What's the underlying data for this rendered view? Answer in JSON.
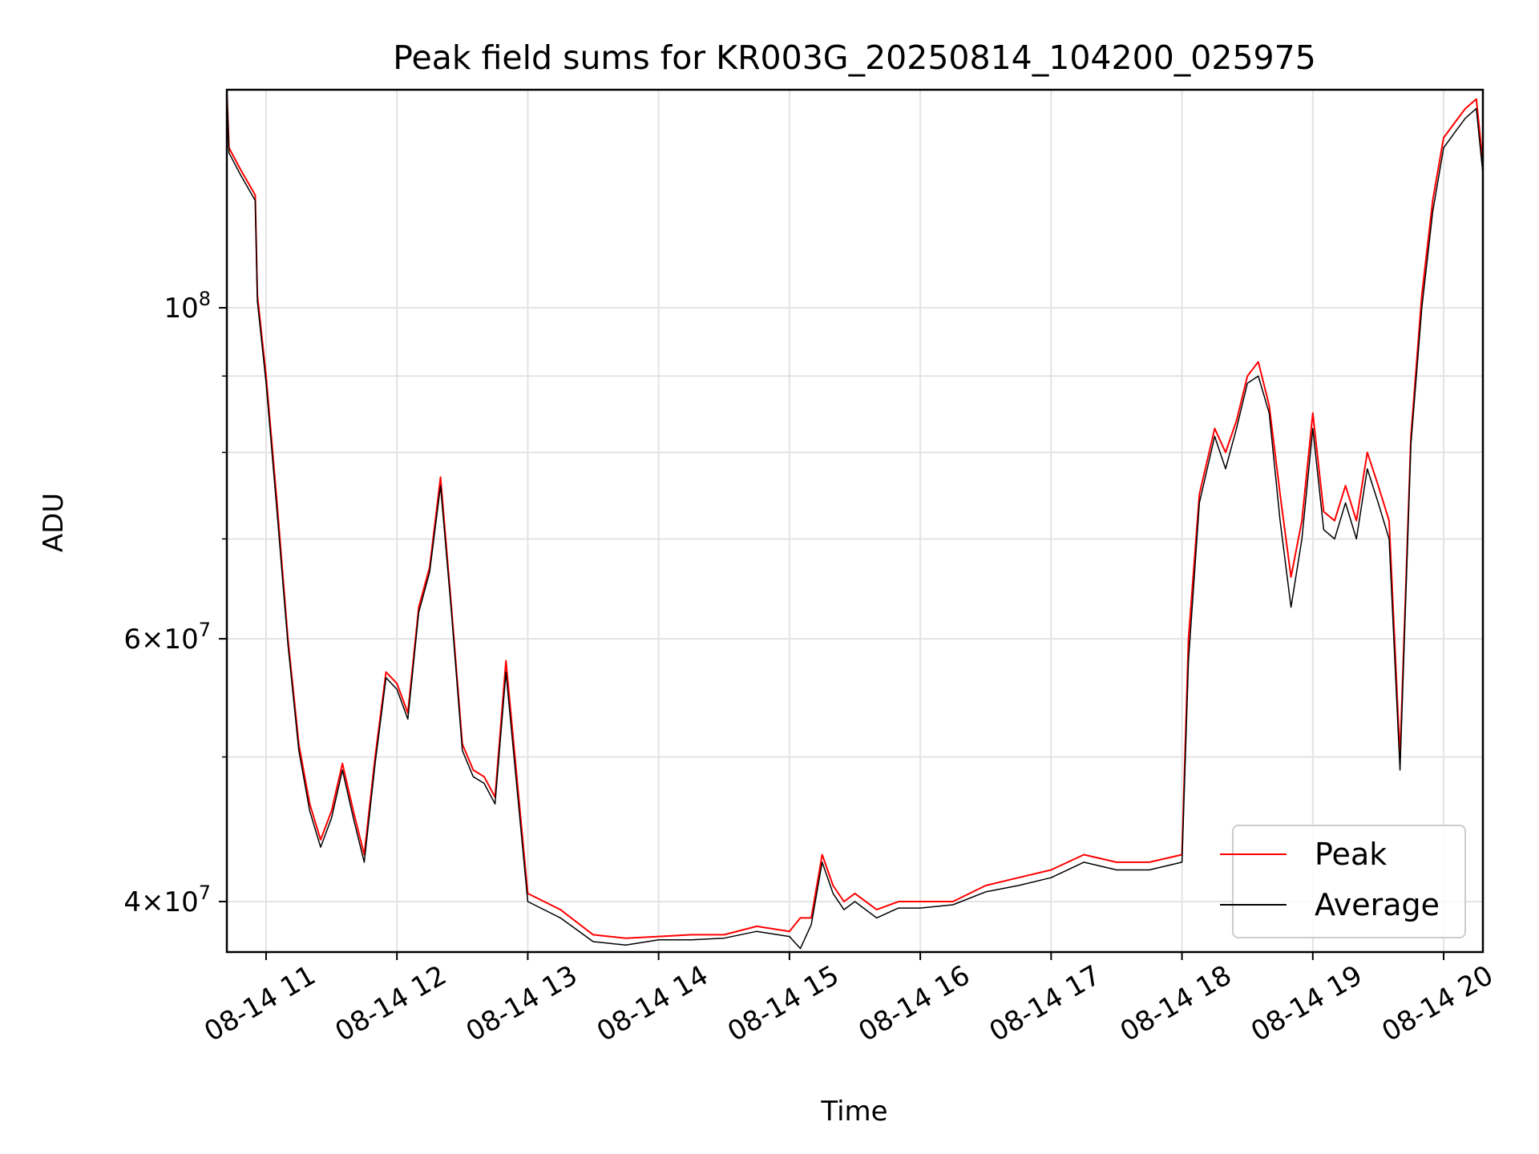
{
  "chart_data": {
    "type": "line",
    "title": "Peak field sums for KR003G_20250814_104200_025975",
    "xlabel": "Time",
    "ylabel": "ADU",
    "yscale": "log",
    "xlim": [
      "2025-08-14T10:42",
      "2025-08-14T20:18"
    ],
    "ylim": [
      37000000,
      140000000
    ],
    "x_ticks": [
      "08-14 11",
      "08-14 12",
      "08-14 13",
      "08-14 14",
      "08-14 15",
      "08-14 16",
      "08-14 17",
      "08-14 18",
      "08-14 19",
      "08-14 20"
    ],
    "y_ticks": [
      {
        "value": 40000000,
        "base": "4",
        "sup": "7"
      },
      {
        "value": 60000000,
        "base": "6",
        "sup": "7"
      },
      {
        "value": 100000000,
        "base": "10",
        "sup": "8"
      }
    ],
    "y_minor_ticks": [
      50000000,
      70000000,
      80000000,
      90000000
    ],
    "grid": true,
    "legend_position": "lower-right",
    "series": [
      {
        "name": "Peak",
        "color": "#ff0000",
        "x": [
          "2025-08-14T10:42",
          "2025-08-14T10:43",
          "2025-08-14T10:48",
          "2025-08-14T10:55",
          "2025-08-14T10:56",
          "2025-08-14T11:00",
          "2025-08-14T11:05",
          "2025-08-14T11:10",
          "2025-08-14T11:15",
          "2025-08-14T11:20",
          "2025-08-14T11:25",
          "2025-08-14T11:30",
          "2025-08-14T11:35",
          "2025-08-14T11:40",
          "2025-08-14T11:45",
          "2025-08-14T11:50",
          "2025-08-14T11:55",
          "2025-08-14T12:00",
          "2025-08-14T12:05",
          "2025-08-14T12:10",
          "2025-08-14T12:15",
          "2025-08-14T12:20",
          "2025-08-14T12:25",
          "2025-08-14T12:30",
          "2025-08-14T12:35",
          "2025-08-14T12:40",
          "2025-08-14T12:45",
          "2025-08-14T12:50",
          "2025-08-14T13:00",
          "2025-08-14T13:15",
          "2025-08-14T13:30",
          "2025-08-14T13:45",
          "2025-08-14T14:00",
          "2025-08-14T14:15",
          "2025-08-14T14:30",
          "2025-08-14T14:45",
          "2025-08-14T15:00",
          "2025-08-14T15:05",
          "2025-08-14T15:10",
          "2025-08-14T15:15",
          "2025-08-14T15:20",
          "2025-08-14T15:25",
          "2025-08-14T15:30",
          "2025-08-14T15:40",
          "2025-08-14T15:50",
          "2025-08-14T16:00",
          "2025-08-14T16:15",
          "2025-08-14T16:30",
          "2025-08-14T16:45",
          "2025-08-14T17:00",
          "2025-08-14T17:15",
          "2025-08-14T17:30",
          "2025-08-14T17:45",
          "2025-08-14T18:00",
          "2025-08-14T18:03",
          "2025-08-14T18:08",
          "2025-08-14T18:15",
          "2025-08-14T18:20",
          "2025-08-14T18:25",
          "2025-08-14T18:30",
          "2025-08-14T18:35",
          "2025-08-14T18:40",
          "2025-08-14T18:45",
          "2025-08-14T18:50",
          "2025-08-14T18:55",
          "2025-08-14T19:00",
          "2025-08-14T19:05",
          "2025-08-14T19:10",
          "2025-08-14T19:15",
          "2025-08-14T19:20",
          "2025-08-14T19:25",
          "2025-08-14T19:30",
          "2025-08-14T19:35",
          "2025-08-14T19:40",
          "2025-08-14T19:45",
          "2025-08-14T19:50",
          "2025-08-14T19:55",
          "2025-08-14T20:00",
          "2025-08-14T20:05",
          "2025-08-14T20:10",
          "2025-08-14T20:15",
          "2025-08-14T20:18"
        ],
        "values": [
          140000000,
          128000000,
          124000000,
          119000000,
          102000000,
          90000000,
          74000000,
          60000000,
          51000000,
          46500000,
          44000000,
          46000000,
          49500000,
          46000000,
          43000000,
          50000000,
          57000000,
          56000000,
          53500000,
          63000000,
          67000000,
          77000000,
          63000000,
          51000000,
          49000000,
          48500000,
          47000000,
          58000000,
          40500000,
          39500000,
          38000000,
          37800000,
          37900000,
          38000000,
          38000000,
          38500000,
          38200000,
          39000000,
          39000000,
          43000000,
          41000000,
          40000000,
          40500000,
          39500000,
          40000000,
          40000000,
          40000000,
          41000000,
          41500000,
          42000000,
          43000000,
          42500000,
          42500000,
          43000000,
          60000000,
          75000000,
          83000000,
          80000000,
          84000000,
          90000000,
          92000000,
          86000000,
          75000000,
          66000000,
          72000000,
          85000000,
          73000000,
          72000000,
          76000000,
          72000000,
          80000000,
          76000000,
          72000000,
          50000000,
          82000000,
          102000000,
          118000000,
          130000000,
          133000000,
          136000000,
          138000000,
          125000000
        ]
      },
      {
        "name": "Average",
        "color": "#000000",
        "x": [
          "2025-08-14T10:42",
          "2025-08-14T10:43",
          "2025-08-14T10:48",
          "2025-08-14T10:55",
          "2025-08-14T10:56",
          "2025-08-14T11:00",
          "2025-08-14T11:05",
          "2025-08-14T11:10",
          "2025-08-14T11:15",
          "2025-08-14T11:20",
          "2025-08-14T11:25",
          "2025-08-14T11:30",
          "2025-08-14T11:35",
          "2025-08-14T11:40",
          "2025-08-14T11:45",
          "2025-08-14T11:50",
          "2025-08-14T11:55",
          "2025-08-14T12:00",
          "2025-08-14T12:05",
          "2025-08-14T12:10",
          "2025-08-14T12:15",
          "2025-08-14T12:20",
          "2025-08-14T12:25",
          "2025-08-14T12:30",
          "2025-08-14T12:35",
          "2025-08-14T12:40",
          "2025-08-14T12:45",
          "2025-08-14T12:50",
          "2025-08-14T13:00",
          "2025-08-14T13:15",
          "2025-08-14T13:30",
          "2025-08-14T13:45",
          "2025-08-14T14:00",
          "2025-08-14T14:15",
          "2025-08-14T14:30",
          "2025-08-14T14:45",
          "2025-08-14T15:00",
          "2025-08-14T15:05",
          "2025-08-14T15:10",
          "2025-08-14T15:15",
          "2025-08-14T15:20",
          "2025-08-14T15:25",
          "2025-08-14T15:30",
          "2025-08-14T15:40",
          "2025-08-14T15:50",
          "2025-08-14T16:00",
          "2025-08-14T16:15",
          "2025-08-14T16:30",
          "2025-08-14T16:45",
          "2025-08-14T17:00",
          "2025-08-14T17:15",
          "2025-08-14T17:30",
          "2025-08-14T17:45",
          "2025-08-14T18:00",
          "2025-08-14T18:03",
          "2025-08-14T18:08",
          "2025-08-14T18:15",
          "2025-08-14T18:20",
          "2025-08-14T18:25",
          "2025-08-14T18:30",
          "2025-08-14T18:35",
          "2025-08-14T18:40",
          "2025-08-14T18:45",
          "2025-08-14T18:50",
          "2025-08-14T18:55",
          "2025-08-14T19:00",
          "2025-08-14T19:05",
          "2025-08-14T19:10",
          "2025-08-14T19:15",
          "2025-08-14T19:20",
          "2025-08-14T19:25",
          "2025-08-14T19:30",
          "2025-08-14T19:35",
          "2025-08-14T19:40",
          "2025-08-14T19:45",
          "2025-08-14T19:50",
          "2025-08-14T19:55",
          "2025-08-14T20:00",
          "2025-08-14T20:05",
          "2025-08-14T20:10",
          "2025-08-14T20:15",
          "2025-08-14T20:18"
        ],
        "values": [
          140000000,
          127000000,
          123000000,
          118000000,
          101000000,
          89000000,
          73000000,
          59500000,
          50500000,
          46000000,
          43500000,
          45500000,
          49000000,
          45500000,
          42500000,
          49500000,
          56500000,
          55500000,
          53000000,
          62500000,
          66500000,
          76000000,
          62500000,
          50500000,
          48500000,
          48000000,
          46500000,
          57000000,
          40000000,
          39000000,
          37600000,
          37400000,
          37700000,
          37700000,
          37800000,
          38200000,
          37900000,
          37200000,
          38600000,
          42500000,
          40500000,
          39500000,
          40000000,
          39000000,
          39600000,
          39600000,
          39800000,
          40600000,
          41000000,
          41500000,
          42500000,
          42000000,
          42000000,
          42500000,
          58000000,
          74000000,
          82000000,
          78000000,
          83000000,
          89000000,
          90000000,
          85000000,
          72000000,
          63000000,
          70000000,
          83000000,
          71000000,
          70000000,
          74000000,
          70000000,
          78000000,
          74000000,
          70000000,
          49000000,
          81000000,
          100000000,
          116000000,
          128000000,
          131000000,
          134000000,
          136000000,
          123000000
        ]
      }
    ]
  },
  "legend": {
    "items": [
      {
        "label": "Peak",
        "color": "#ff0000"
      },
      {
        "label": "Average",
        "color": "#000000"
      }
    ]
  }
}
